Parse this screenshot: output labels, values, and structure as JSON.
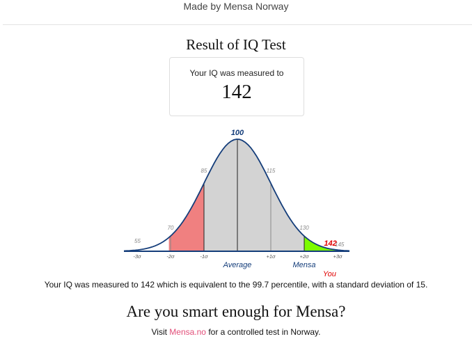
{
  "header": {
    "text": "Made by Mensa Norway"
  },
  "result": {
    "title": "Result of IQ Test",
    "label": "Your IQ was measured to",
    "value": "142"
  },
  "chart_data": {
    "type": "area",
    "mean": 100,
    "sd": 15,
    "user_score": 142,
    "score_labels": [
      "55",
      "70",
      "85",
      "100",
      "115",
      "130",
      "142",
      "145"
    ],
    "sigma_labels": [
      "-3σ",
      "-2σ",
      "-1σ",
      "+1σ",
      "+2σ",
      "+3σ"
    ],
    "average_label": "Average",
    "mensa_label": "Mensa",
    "you_label": "You",
    "colors": {
      "below": "#f08080",
      "middle": "#d3d3d3",
      "mensa": "#7cfc00",
      "curve": "#143d7a",
      "you": "#e00000"
    }
  },
  "summary": "Your IQ was measured to 142 which is equivalent to the 99.7 percentile, with a standard deviation of 15.",
  "promo": {
    "headline": "Are you smart enough for Mensa?",
    "visit_prefix": "Visit ",
    "link_text": "Mensa.no",
    "visit_suffix": " for a controlled test in Norway."
  }
}
